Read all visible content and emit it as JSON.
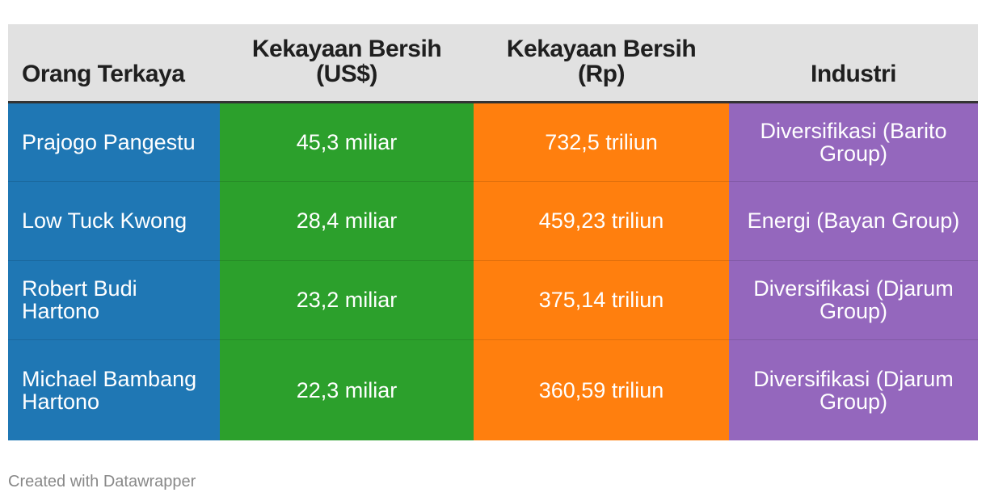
{
  "chart_data": {
    "type": "table",
    "columns": [
      "Orang Terkaya",
      "Kekayaan Bersih\n(US$)",
      "Kekayaan Bersih\n(Rp)",
      "Industri"
    ],
    "rows": [
      [
        "Prajogo Pangestu",
        "45,3 miliar",
        "732,5 triliun",
        "Diversifikasi (Barito Group)"
      ],
      [
        "Low Tuck Kwong",
        "28,4 miliar",
        "459,23 triliun",
        "Energi (Bayan Group)"
      ],
      [
        "Robert Budi Hartono",
        "23,2 miliar",
        "375,14 triliun",
        "Diversifikasi (Djarum Group)"
      ],
      [
        "Michael Bambang Hartono",
        "22,3 miliar",
        "360,59 triliun",
        "Diversifikasi (Djarum Group)"
      ]
    ],
    "column_colors": [
      "#1f77b4",
      "#2ca02c",
      "#ff7f0e",
      "#9467bd"
    ],
    "header_background": "#e1e1e1"
  },
  "footer": "Created with Datawrapper"
}
